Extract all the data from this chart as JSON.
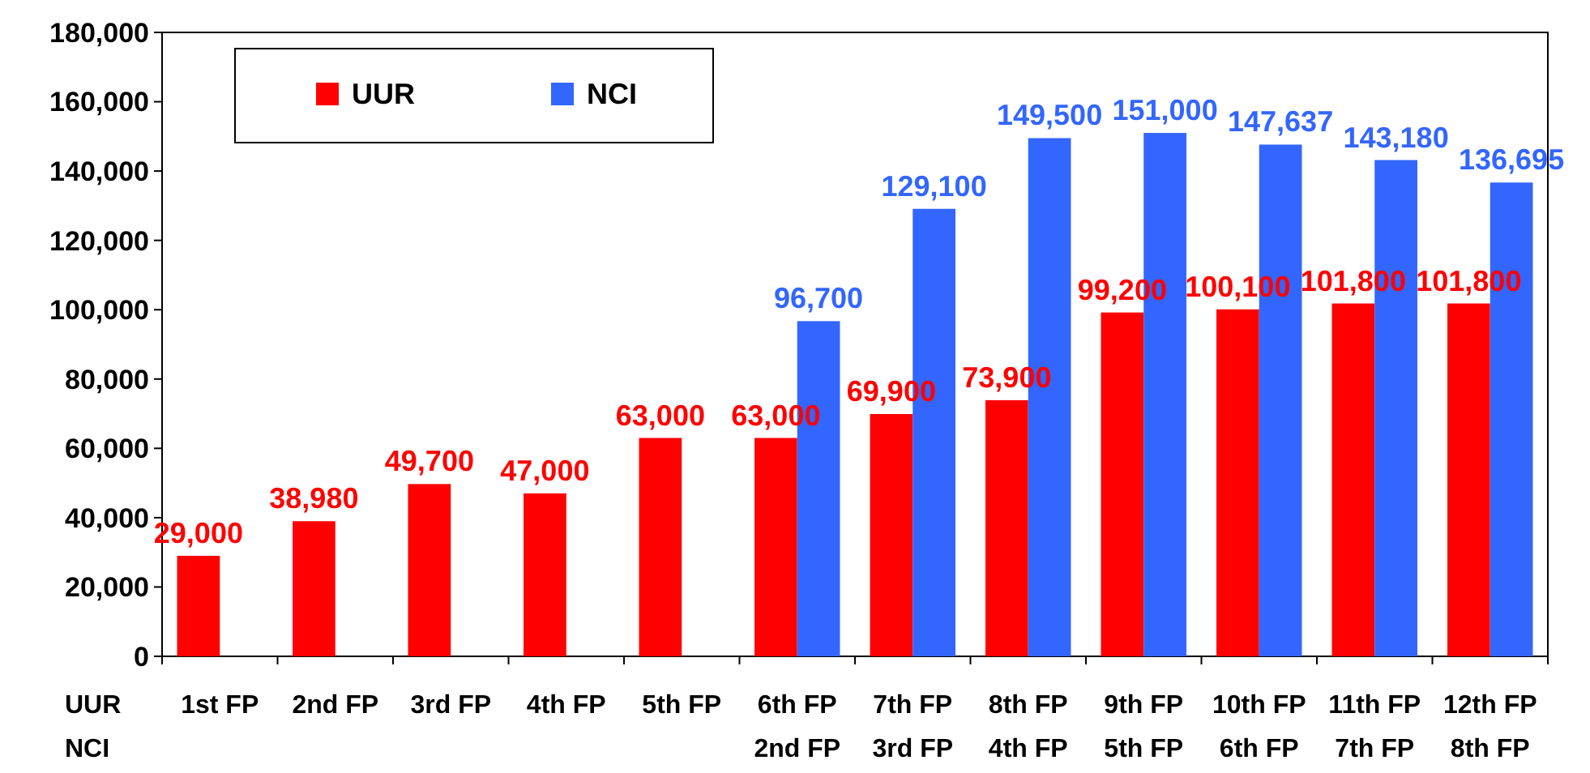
{
  "chart_data": {
    "type": "bar",
    "categories": [
      "1st FP",
      "2nd FP",
      "3rd FP",
      "4th FP",
      "5th FP",
      "6th FP\n2nd FP",
      "7th FP\n3rd FP",
      "8th FP\n4th FP",
      "9th FP\n5th FP",
      "10th FP\n6th FP",
      "11th FP\n7th FP",
      "12th FP\n8th FP"
    ],
    "series": [
      {
        "name": "UUR",
        "color": "#ff0000",
        "values": [
          29000,
          38980,
          49700,
          47000,
          63000,
          63000,
          69900,
          73900,
          99200,
          100100,
          101800,
          101800
        ],
        "value_labels": [
          "29,000",
          "38,980",
          "49,700",
          "47,000",
          "63,000",
          "63,000",
          "69,900",
          "73,900",
          "99,200",
          "100,100",
          "101,800",
          "101,800"
        ]
      },
      {
        "name": "NCI",
        "color": "#3366ff",
        "values": [
          null,
          null,
          null,
          null,
          null,
          96700,
          129100,
          149500,
          151000,
          147637,
          143180,
          136695
        ],
        "value_labels": [
          null,
          null,
          null,
          null,
          null,
          "96,700",
          "129,100",
          "149,500",
          "151,000",
          "147,637",
          "143,180",
          "136,695"
        ]
      }
    ],
    "ylim": [
      0,
      180000
    ],
    "yticks": [
      {
        "value": 0,
        "label": "0"
      },
      {
        "value": 20000,
        "label": "20,000"
      },
      {
        "value": 40000,
        "label": "40,000"
      },
      {
        "value": 60000,
        "label": "60,000"
      },
      {
        "value": 80000,
        "label": "80,000"
      },
      {
        "value": 100000,
        "label": "100,000"
      },
      {
        "value": 120000,
        "label": "120,000"
      },
      {
        "value": 140000,
        "label": "140,000"
      },
      {
        "value": 160000,
        "label": "160,000"
      },
      {
        "value": 180000,
        "label": "180,000"
      }
    ],
    "annotations": [
      "UUR",
      "NCI"
    ],
    "grid": false,
    "legend": "top left"
  }
}
